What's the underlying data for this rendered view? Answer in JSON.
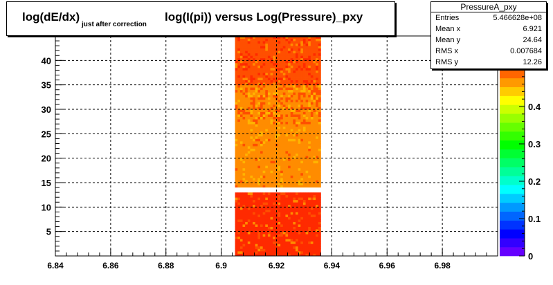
{
  "title": {
    "main": "log(dE/dx)",
    "sub": "just after correction",
    "rest": "log(I(pi)) versus Log(Pressure)_pxy"
  },
  "stats": {
    "name": "PressureA_pxy",
    "rows": [
      {
        "label": "Entries",
        "value": "5.466628e+08"
      },
      {
        "label": "Mean x",
        "value": "6.921"
      },
      {
        "label": "Mean y",
        "value": "24.64"
      },
      {
        "label": "RMS x",
        "value": "0.007684"
      },
      {
        "label": "RMS y",
        "value": "12.26"
      }
    ]
  },
  "colors": {
    "red": "#ff2a00",
    "orange_red": "#ff4f00",
    "orange": "#ff8c00",
    "yellow_orange": "#ffb400",
    "gap": "#ffffff"
  },
  "chart_data": {
    "type": "heatmap",
    "title": "log(dE/dx) just after correction log(I(pi)) versus Log(Pressure)_pxy",
    "xlim": [
      6.84,
      7.0
    ],
    "ylim": [
      0,
      45
    ],
    "x_ticks": [
      6.84,
      6.86,
      6.88,
      6.9,
      6.92,
      6.94,
      6.96,
      6.98
    ],
    "x_tick_labels": [
      "6.84",
      "6.86",
      "6.88",
      "6.9",
      "6.92",
      "6.94",
      "6.96",
      "6.98"
    ],
    "y_ticks": [
      5,
      10,
      15,
      20,
      25,
      30,
      35,
      40
    ],
    "y_tick_labels": [
      "5",
      "10",
      "15",
      "20",
      "25",
      "30",
      "35",
      "40"
    ],
    "grid": true,
    "data_region": {
      "x_min": 6.905,
      "x_max": 6.936,
      "y_min": 0,
      "y_max": 45,
      "empty_band_y": [
        13.7,
        14.0
      ]
    },
    "bands": [
      {
        "y_min": 0,
        "y_max": 13,
        "level": 0.5
      },
      {
        "y_min": 14,
        "y_max": 27,
        "level": 0.4
      },
      {
        "y_min": 27,
        "y_max": 35,
        "level": 0.45
      },
      {
        "y_min": 35,
        "y_max": 45,
        "level": 0.5
      }
    ],
    "colorbar": {
      "min": 0,
      "max": 0.5,
      "ticks": [
        0,
        0.1,
        0.2,
        0.3,
        0.4
      ],
      "tick_labels": [
        "0",
        "0.1",
        "0.2",
        "0.3",
        "0.4"
      ],
      "palette": [
        "#6600ff",
        "#3300ff",
        "#0000ff",
        "#0033ff",
        "#0066ff",
        "#0099ff",
        "#00ccff",
        "#00ffff",
        "#00ffcc",
        "#00ff99",
        "#00ff66",
        "#00ff33",
        "#00ff00",
        "#33ff00",
        "#66ff00",
        "#99ff00",
        "#ccff00",
        "#ffff00",
        "#ffcc00",
        "#ff9900",
        "#ff6600"
      ]
    }
  }
}
